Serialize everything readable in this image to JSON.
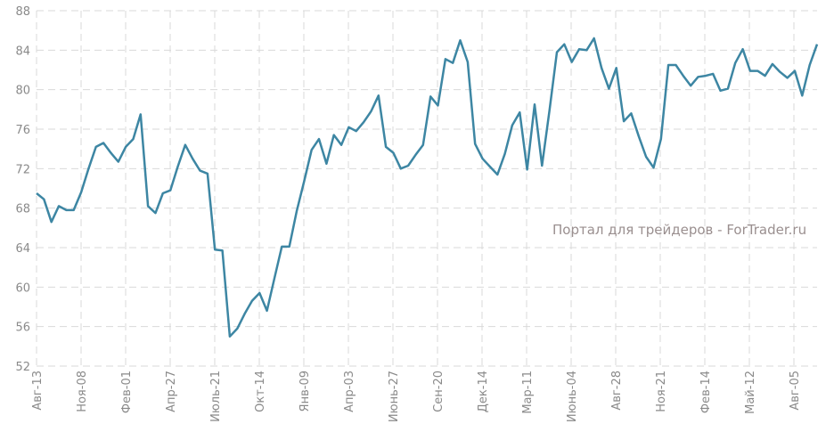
{
  "chart_data": {
    "type": "line",
    "title": "",
    "xlabel": "",
    "ylabel": "",
    "ylim": [
      52,
      88
    ],
    "yticks": [
      52,
      56,
      60,
      64,
      68,
      72,
      76,
      80,
      84,
      88
    ],
    "grid": true,
    "line_color": "#3d86a3",
    "watermark": "Портал для трейдеров - ForTrader.ru",
    "xtick_labels": [
      "Авг-13",
      "Ноя-08",
      "Фев-01",
      "Апр-27",
      "Июль-21",
      "Окт-14",
      "Янв-09",
      "Апр-03",
      "Июнь-27",
      "Сен-20",
      "Дек-14",
      "Мар-11",
      "Июнь-04",
      "Авг-28",
      "Ноя-21",
      "Фев-14",
      "Май-12",
      "Авг-05"
    ],
    "series": [
      {
        "name": "value",
        "values": [
          69.5,
          68.9,
          66.6,
          68.2,
          67.8,
          67.8,
          69.6,
          72.0,
          74.2,
          74.6,
          73.6,
          72.7,
          74.2,
          75.0,
          77.5,
          68.2,
          67.5,
          69.5,
          69.8,
          72.2,
          74.4,
          73.0,
          71.8,
          71.5,
          63.8,
          63.7,
          55.0,
          55.8,
          57.3,
          58.6,
          59.4,
          57.6,
          60.9,
          64.1,
          64.1,
          67.7,
          70.7,
          73.9,
          75.0,
          72.5,
          75.4,
          74.4,
          76.2,
          75.8,
          76.7,
          77.8,
          79.4,
          74.2,
          73.6,
          72.0,
          72.3,
          73.4,
          74.4,
          79.3,
          78.4,
          83.1,
          82.7,
          85.0,
          82.8,
          74.5,
          73.0,
          72.2,
          71.4,
          73.5,
          76.4,
          77.7,
          71.9,
          78.5,
          72.3,
          77.9,
          83.8,
          84.6,
          82.8,
          84.1,
          84.0,
          85.2,
          82.2,
          80.1,
          82.2,
          76.8,
          77.6,
          75.3,
          73.2,
          72.1,
          75.0,
          82.5,
          82.5,
          81.4,
          80.4,
          81.3,
          81.4,
          81.6,
          79.9,
          80.1,
          82.7,
          84.1,
          81.9,
          81.9,
          81.4,
          82.6,
          81.8,
          81.2,
          81.9,
          79.4,
          82.5,
          84.6
        ]
      }
    ]
  }
}
